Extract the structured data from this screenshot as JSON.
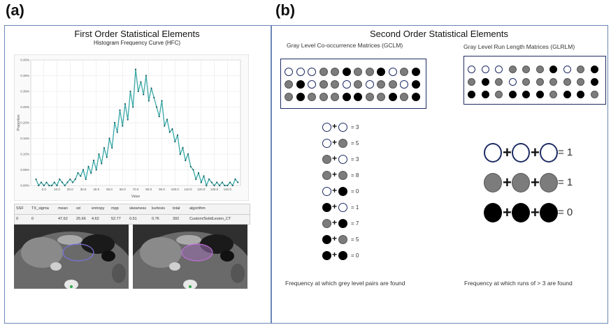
{
  "panels": {
    "a_label": "(a)",
    "b_label": "(b)"
  },
  "first_order": {
    "title": "First Order Statistical Elements",
    "subtitle": "Histogram Frequency Curve (HFC)",
    "y_tick_labels": [
      "0.40%",
      "0.35%",
      "0.30%",
      "0.25%",
      "0.20%",
      "0.15%",
      "0.10%",
      "0.05%",
      "0.00%"
    ],
    "x_tick_labels": [
      "0.0",
      "10.0",
      "20.0",
      "30.0",
      "40.0",
      "50.0",
      "60.0",
      "70.0",
      "80.0",
      "90.0",
      "100.0",
      "110.0",
      "120.0",
      "130.0",
      "140.0"
    ],
    "xlabel": "Value",
    "ylabel": "Proportion",
    "table_headers": [
      "SSF",
      "TX_sigma",
      "mean",
      "sd",
      "entropy",
      "mpp",
      "skewness",
      "kurtosis",
      "total",
      "algorithm"
    ],
    "table_values": [
      "0",
      "0",
      "47.62",
      "25.66",
      "4.62",
      "52.77",
      "0.51",
      "0.76",
      "392",
      "Custom/SolidLesion_CT"
    ]
  },
  "second_order": {
    "title": "Second Order Statistical Elements",
    "glcm_label": "Gray Level Co-occurrence Matrices (GCLM)",
    "glrlm_label": "Gray Level Run Length Matrices (GLRLM)",
    "glcm_grid": [
      [
        "w",
        "w",
        "w",
        "g",
        "g",
        "b",
        "g",
        "g",
        "b",
        "w",
        "g",
        "b"
      ],
      [
        "g",
        "b",
        "w",
        "g",
        "g",
        "w",
        "g",
        "w",
        "g",
        "g",
        "w",
        "b"
      ],
      [
        "g",
        "b",
        "g",
        "g",
        "g",
        "b",
        "b",
        "g",
        "g",
        "b",
        "g",
        "b"
      ]
    ],
    "glrlm_grid": [
      [
        "w",
        "w",
        "w",
        "g",
        "g",
        "g",
        "b",
        "w",
        "g",
        "b"
      ],
      [
        "g",
        "b",
        "g",
        "w",
        "g",
        "g",
        "g",
        "g",
        "g",
        "b"
      ],
      [
        "b",
        "b",
        "g",
        "b",
        "b",
        "b",
        "g",
        "b",
        "b",
        "g"
      ]
    ],
    "pairs": [
      {
        "a": "w",
        "b": "w",
        "label": "= 3"
      },
      {
        "a": "w",
        "b": "g",
        "label": "= 5"
      },
      {
        "a": "g",
        "b": "w",
        "label": "= 3"
      },
      {
        "a": "g",
        "b": "g",
        "label": "= 8"
      },
      {
        "a": "w",
        "b": "b",
        "label": "= 0"
      },
      {
        "a": "b",
        "b": "w",
        "label": "= 1"
      },
      {
        "a": "g",
        "b": "b",
        "label": "= 7"
      },
      {
        "a": "b",
        "b": "g",
        "label": "= 5"
      },
      {
        "a": "b",
        "b": "b",
        "label": "= 0"
      }
    ],
    "runs": [
      {
        "color": "w",
        "label": "= 1"
      },
      {
        "color": "g",
        "label": "= 1"
      },
      {
        "color": "b",
        "label": "= 0"
      }
    ],
    "glcm_caption": "Frequency at which grey level pairs are found",
    "glrlm_caption": "Frequency at which runs of > 3 are found"
  },
  "chart_data": {
    "type": "line",
    "title": "Histogram Frequency Curve (HFC)",
    "xlabel": "Value",
    "ylabel": "Proportion",
    "xlim": [
      -10,
      150
    ],
    "ylim": [
      0,
      0.4
    ],
    "series": [
      {
        "x": [
          -6,
          -4,
          -2,
          0,
          2,
          4,
          6,
          8,
          10,
          12,
          14,
          16,
          18,
          20,
          22,
          24,
          26,
          28,
          30,
          32,
          34,
          36,
          38,
          40,
          42,
          44,
          46,
          48,
          50,
          52,
          54,
          56,
          58,
          60,
          62,
          64,
          66,
          68,
          70,
          72,
          74,
          76,
          78,
          80,
          82,
          84,
          86,
          88,
          90,
          92,
          94,
          96,
          98,
          100,
          102,
          104,
          106,
          108,
          110,
          112,
          114,
          116,
          118,
          120,
          122,
          124,
          126,
          128,
          130,
          132,
          134,
          136,
          138,
          140,
          142,
          144,
          146,
          148
        ],
        "values": [
          0.02,
          0.0,
          0.01,
          0.0,
          0.01,
          0.0,
          0.0,
          0.01,
          0.0,
          0.02,
          0.01,
          0.0,
          0.01,
          0.02,
          0.01,
          0.02,
          0.04,
          0.03,
          0.05,
          0.02,
          0.06,
          0.04,
          0.08,
          0.05,
          0.1,
          0.07,
          0.12,
          0.09,
          0.15,
          0.12,
          0.2,
          0.17,
          0.24,
          0.19,
          0.26,
          0.21,
          0.3,
          0.25,
          0.37,
          0.3,
          0.33,
          0.29,
          0.35,
          0.27,
          0.31,
          0.28,
          0.25,
          0.22,
          0.27,
          0.19,
          0.21,
          0.17,
          0.18,
          0.14,
          0.16,
          0.1,
          0.12,
          0.08,
          0.1,
          0.06,
          0.05,
          0.02,
          0.04,
          0.01,
          0.03,
          0.0,
          0.02,
          0.01,
          0.0,
          0.01,
          0.0,
          0.01,
          0.0,
          0.0,
          0.01,
          0.0,
          0.02,
          0.01
        ]
      }
    ],
    "grid": true
  },
  "colors": {
    "line": "#3aa8a8",
    "marker": "#1a5f5f",
    "frame": "#6a86b5",
    "matrix_border": "#1d2b63",
    "gray": "#7c7c7c"
  }
}
